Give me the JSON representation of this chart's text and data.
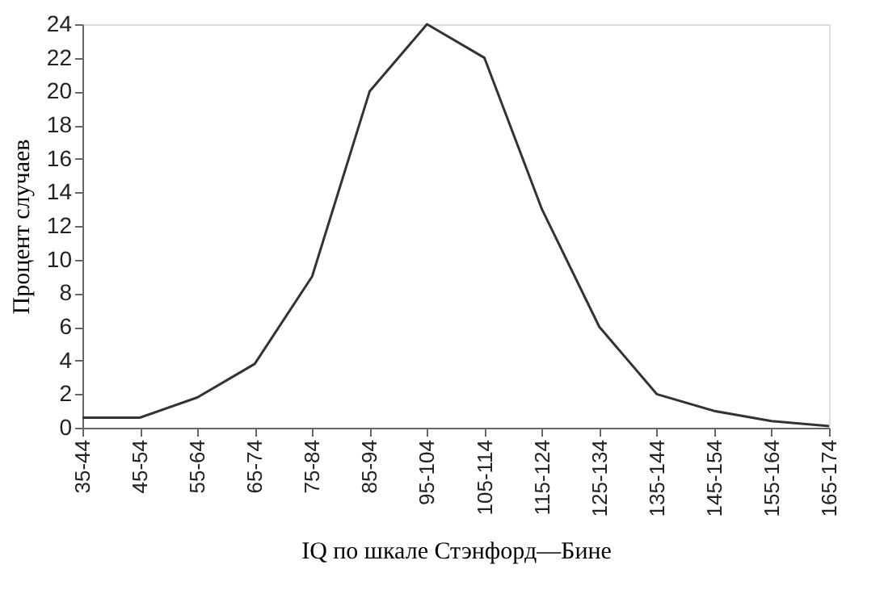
{
  "chart_data": {
    "type": "line",
    "xlabel": "IQ по шкале Стэнфорд—Бине",
    "ylabel": "Процент случаев",
    "categories": [
      "35-44",
      "45-54",
      "55-64",
      "65-74",
      "75-84",
      "85-94",
      "95-104",
      "105-114",
      "115-124",
      "125-134",
      "135-144",
      "145-154",
      "155-164",
      "165-174"
    ],
    "series": [
      {
        "color": "#333333",
        "values": [
          0.6,
          0.6,
          1.8,
          3.8,
          9,
          20,
          24,
          22,
          13,
          6,
          2,
          1,
          0.4,
          0.1
        ]
      }
    ],
    "ylim": [
      0,
      24
    ],
    "yticks": [
      0,
      2,
      4,
      6,
      8,
      10,
      12,
      14,
      16,
      18,
      20,
      22,
      24
    ],
    "grid": false,
    "legend": false,
    "marker": "none",
    "line_style": "solid"
  }
}
